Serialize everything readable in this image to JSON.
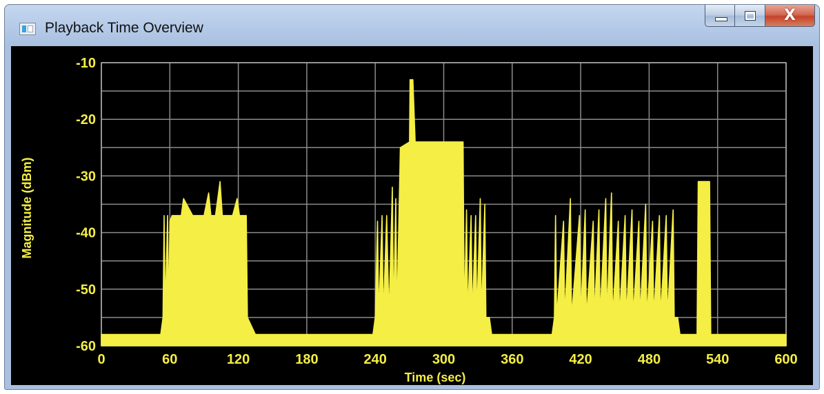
{
  "window": {
    "title": "Playback Time Overview",
    "buttons": {
      "minimize": "minimize",
      "maximize": "maximize",
      "close": "X"
    }
  },
  "colors": {
    "plot": "#f4ee45",
    "background": "#000000",
    "grid": "#8c8c8c",
    "text": "#f4ee45"
  },
  "icons": {
    "app": "window-app-icon",
    "minimize": "minimize-icon",
    "maximize": "maximize-icon",
    "close": "close-icon"
  },
  "chart_data": {
    "type": "area",
    "title": "",
    "xlabel": "Time (sec)",
    "ylabel": "Magnitude (dBm)",
    "xlim": [
      0,
      600
    ],
    "ylim": [
      -60,
      -10
    ],
    "xticks": [
      0,
      60,
      120,
      180,
      240,
      300,
      360,
      420,
      480,
      540,
      600
    ],
    "yticks": [
      -10,
      -20,
      -30,
      -40,
      -50,
      -60
    ],
    "grid": true,
    "legend": "none",
    "series": [
      {
        "values": [
          [
            0,
            -58
          ],
          [
            25,
            -58
          ],
          [
            52,
            -58
          ],
          [
            54,
            -55
          ],
          [
            55,
            -37
          ],
          [
            56,
            -54
          ],
          [
            58,
            -37
          ],
          [
            59,
            -55
          ],
          [
            60,
            -38
          ],
          [
            62,
            -37
          ],
          [
            70,
            -37
          ],
          [
            72,
            -34
          ],
          [
            80,
            -37
          ],
          [
            90,
            -37
          ],
          [
            94,
            -33
          ],
          [
            96,
            -37
          ],
          [
            100,
            -37
          ],
          [
            104,
            -31
          ],
          [
            106,
            -37
          ],
          [
            115,
            -37
          ],
          [
            119,
            -34
          ],
          [
            121,
            -37
          ],
          [
            125,
            -37
          ],
          [
            127,
            -37
          ],
          [
            128,
            -55
          ],
          [
            135,
            -58
          ],
          [
            180,
            -58
          ],
          [
            230,
            -58
          ],
          [
            238,
            -58
          ],
          [
            240,
            -55
          ],
          [
            242,
            -38
          ],
          [
            243,
            -55
          ],
          [
            246,
            -37
          ],
          [
            247,
            -55
          ],
          [
            250,
            -37
          ],
          [
            252,
            -55
          ],
          [
            255,
            -32
          ],
          [
            256,
            -55
          ],
          [
            258,
            -34
          ],
          [
            259,
            -55
          ],
          [
            262,
            -25
          ],
          [
            270,
            -24
          ],
          [
            270.5,
            -13
          ],
          [
            273,
            -13
          ],
          [
            275,
            -24
          ],
          [
            290,
            -24
          ],
          [
            300,
            -24
          ],
          [
            308,
            -24
          ],
          [
            310,
            -24
          ],
          [
            317,
            -24
          ],
          [
            318,
            -55
          ],
          [
            320,
            -36
          ],
          [
            321,
            -55
          ],
          [
            324,
            -37
          ],
          [
            325,
            -55
          ],
          [
            328,
            -37
          ],
          [
            329,
            -55
          ],
          [
            332,
            -34
          ],
          [
            333,
            -55
          ],
          [
            336,
            -35
          ],
          [
            337,
            -55
          ],
          [
            340,
            -55
          ],
          [
            342,
            -58
          ],
          [
            360,
            -58
          ],
          [
            395,
            -58
          ],
          [
            397,
            -55
          ],
          [
            398,
            -37
          ],
          [
            399,
            -55
          ],
          [
            405,
            -38
          ],
          [
            406,
            -55
          ],
          [
            411,
            -34
          ],
          [
            412,
            -55
          ],
          [
            419,
            -37
          ],
          [
            420,
            -55
          ],
          [
            424,
            -36
          ],
          [
            425,
            -55
          ],
          [
            431,
            -38
          ],
          [
            432,
            -55
          ],
          [
            436,
            -36
          ],
          [
            437,
            -55
          ],
          [
            442,
            -34
          ],
          [
            443,
            -55
          ],
          [
            447,
            -33
          ],
          [
            448,
            -55
          ],
          [
            453,
            -38
          ],
          [
            454,
            -55
          ],
          [
            459,
            -37
          ],
          [
            460,
            -55
          ],
          [
            465,
            -36
          ],
          [
            466,
            -55
          ],
          [
            471,
            -38
          ],
          [
            472,
            -55
          ],
          [
            477,
            -35
          ],
          [
            478,
            -55
          ],
          [
            483,
            -38
          ],
          [
            484,
            -55
          ],
          [
            489,
            -37
          ],
          [
            490,
            -55
          ],
          [
            495,
            -37
          ],
          [
            496,
            -55
          ],
          [
            501,
            -36
          ],
          [
            502,
            -55
          ],
          [
            505,
            -55
          ],
          [
            507,
            -58
          ],
          [
            522,
            -58
          ],
          [
            523,
            -31
          ],
          [
            533,
            -31
          ],
          [
            534,
            -58
          ],
          [
            545,
            -58
          ],
          [
            570,
            -58
          ],
          [
            600,
            -58
          ]
        ]
      }
    ]
  }
}
